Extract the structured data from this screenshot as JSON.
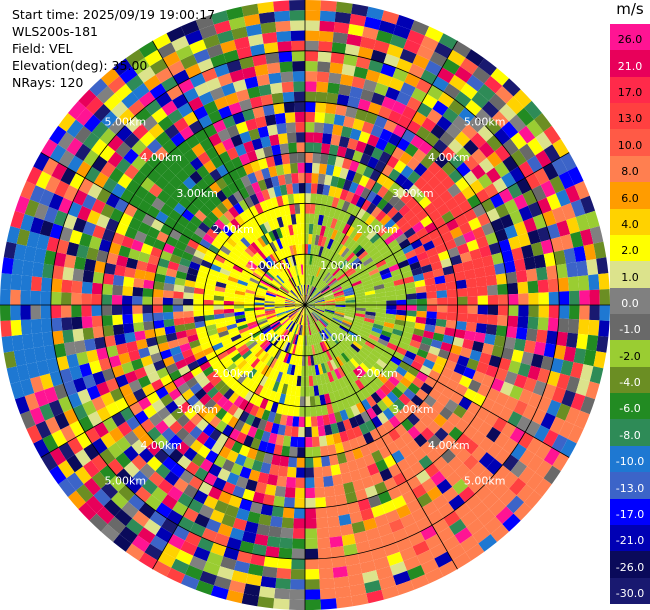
{
  "header": {
    "start_time": "Start time: 2025/09/19 19:00:17",
    "instrument": "WLS200s-181",
    "field": "Field: VEL",
    "elevation": "Elevation(deg): 35.00",
    "nrays": "NRays: 120"
  },
  "colorbar": {
    "unit": "m/s",
    "ticks": [
      "26.0",
      "21.0",
      "17.0",
      "13.0",
      "10.0",
      "8.0",
      "6.0",
      "4.0",
      "2.0",
      "1.0",
      "0.0",
      "-1.0",
      "-2.0",
      "-4.0",
      "-6.0",
      "-8.0",
      "-10.0",
      "-13.0",
      "-17.0",
      "-21.0",
      "-26.0",
      "-30.0"
    ],
    "colors": [
      "#ff1493",
      "#e8005a",
      "#ff2a4a",
      "#ff4040",
      "#ff5a46",
      "#ff7f50",
      "#ff9c00",
      "#ffd200",
      "#ffff00",
      "#dce38c",
      "#808080",
      "#696969",
      "#9acd32",
      "#6b8e23",
      "#228b22",
      "#2e8b57",
      "#1e78d2",
      "#3c64c8",
      "#0000ff",
      "#0000b4",
      "#0a0a5a",
      "#191970"
    ]
  },
  "chart_data": {
    "type": "heatmap",
    "projection": "ppi",
    "field": "VEL",
    "units": "m/s",
    "nrays": 120,
    "elevation_deg": 35.0,
    "range_rings_km": [
      1.0,
      2.0,
      3.0,
      4.0,
      5.0
    ],
    "ring_labels": [
      "1.00km",
      "2.00km",
      "3.00km",
      "4.00km",
      "5.00km"
    ],
    "max_range_km": 6.0,
    "color_levels": [
      -30.0,
      -26.0,
      -21.0,
      -17.0,
      -13.0,
      -10.0,
      -8.0,
      -6.0,
      -4.0,
      -2.0,
      -1.0,
      0.0,
      1.0,
      2.0,
      4.0,
      6.0,
      8.0,
      10.0,
      13.0,
      17.0,
      21.0,
      26.0
    ],
    "regions": [
      {
        "description": "near-field west",
        "value": 2.0
      },
      {
        "description": "near-field east",
        "value": -2.0
      },
      {
        "description": "south-east sector",
        "value": 8.0
      },
      {
        "description": "north-west sector",
        "value": -6.0
      },
      {
        "description": "far west edge",
        "value": -10.0
      },
      {
        "description": "east-north-east sector",
        "value": 13.0
      }
    ]
  }
}
